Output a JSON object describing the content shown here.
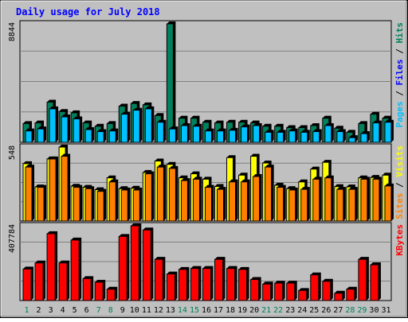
{
  "chart_data": [
    {
      "type": "bar",
      "title": "Daily usage for July 2018",
      "panel": "hits-files-pages",
      "categories": [
        "1",
        "2",
        "3",
        "4",
        "5",
        "6",
        "7",
        "8",
        "9",
        "10",
        "11",
        "12",
        "13",
        "14",
        "15",
        "16",
        "17",
        "18",
        "19",
        "20",
        "21",
        "22",
        "23",
        "24",
        "25",
        "26",
        "27",
        "28",
        "29",
        "30",
        "31"
      ],
      "weekend_days": [
        "1",
        "7",
        "8",
        "14",
        "15",
        "21",
        "22",
        "28",
        "29"
      ],
      "ylim": [
        0,
        8844
      ],
      "y_tick_label": "8844",
      "right_label": {
        "parts": [
          "Pages",
          "Files",
          "Hits"
        ],
        "separator": " / "
      },
      "series": [
        {
          "name": "Hits",
          "color": "#00805c",
          "values": [
            1400,
            1450,
            3000,
            2300,
            2200,
            1450,
            1200,
            1400,
            2700,
            2900,
            2800,
            2000,
            8844,
            1800,
            1800,
            1500,
            1450,
            1500,
            1500,
            1450,
            1200,
            1200,
            1100,
            1100,
            1250,
            1800,
            1050,
            750,
            1400,
            2100,
            1800
          ]
        },
        {
          "name": "Files",
          "color": "#00c0ff",
          "values": [
            850,
            1000,
            2500,
            1900,
            1750,
            950,
            800,
            850,
            2100,
            2400,
            2500,
            1500,
            1000,
            1250,
            1200,
            850,
            850,
            900,
            1150,
            1250,
            750,
            750,
            850,
            750,
            800,
            1250,
            800,
            350,
            650,
            1450,
            1500
          ]
        },
        {
          "name": "Pages",
          "color": "#0000ff",
          "values": [
            0,
            0,
            0,
            0,
            0,
            0,
            0,
            0,
            0,
            0,
            0,
            0,
            0,
            0,
            0,
            0,
            0,
            0,
            0,
            0,
            0,
            0,
            0,
            0,
            0,
            0,
            0,
            0,
            0,
            0,
            0
          ]
        }
      ]
    },
    {
      "type": "bar",
      "panel": "visits-sites",
      "categories": [
        "1",
        "2",
        "3",
        "4",
        "5",
        "6",
        "7",
        "8",
        "9",
        "10",
        "11",
        "12",
        "13",
        "14",
        "15",
        "16",
        "17",
        "18",
        "19",
        "20",
        "21",
        "22",
        "23",
        "24",
        "25",
        "26",
        "27",
        "28",
        "29",
        "30",
        "31"
      ],
      "ylim": [
        0,
        548
      ],
      "y_tick_label": "548",
      "right_label": {
        "parts": [
          "Sites",
          "Visits"
        ],
        "separator": " / "
      },
      "series": [
        {
          "name": "Visits",
          "color": "#ffff00",
          "values": [
            425,
            253,
            460,
            548,
            258,
            250,
            232,
            320,
            240,
            243,
            360,
            445,
            420,
            320,
            350,
            310,
            256,
            470,
            340,
            480,
            430,
            265,
            240,
            290,
            385,
            435,
            255,
            253,
            320,
            323,
            340
          ]
        },
        {
          "name": "Sites",
          "color": "#ff8000",
          "values": [
            400,
            250,
            460,
            480,
            250,
            240,
            220,
            290,
            230,
            230,
            350,
            400,
            390,
            300,
            310,
            250,
            235,
            290,
            290,
            330,
            400,
            250,
            230,
            235,
            310,
            320,
            235,
            235,
            310,
            310,
            260
          ]
        }
      ]
    },
    {
      "type": "bar",
      "panel": "kbytes",
      "categories": [
        "1",
        "2",
        "3",
        "4",
        "5",
        "6",
        "7",
        "8",
        "9",
        "10",
        "11",
        "12",
        "13",
        "14",
        "15",
        "16",
        "17",
        "18",
        "19",
        "20",
        "21",
        "22",
        "23",
        "24",
        "25",
        "26",
        "27",
        "28",
        "29",
        "30",
        "31"
      ],
      "ylim": [
        0,
        407784
      ],
      "y_tick_label": "407784",
      "right_label": {
        "parts": [
          "KBytes"
        ],
        "separator": ""
      },
      "series": [
        {
          "name": "KBytes",
          "color": "#ff0000",
          "values": [
            172000,
            205000,
            365000,
            205000,
            330000,
            120000,
            100000,
            62000,
            350000,
            407784,
            385000,
            225000,
            145000,
            170000,
            175000,
            175000,
            225000,
            175000,
            170000,
            115000,
            90000,
            95000,
            95000,
            55000,
            140000,
            105000,
            40000,
            62000,
            225000,
            195000,
            0
          ]
        }
      ]
    }
  ]
}
